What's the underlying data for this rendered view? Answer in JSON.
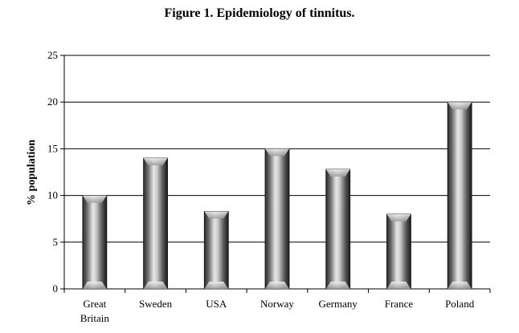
{
  "chart_data": {
    "type": "bar",
    "title": "Figure 1. Epidemiology of tinnitus.",
    "ylabel": "% population",
    "xlabel": "",
    "categories": [
      [
        "Great",
        "Britain"
      ],
      [
        "Sweden"
      ],
      [
        "USA"
      ],
      [
        "Norway"
      ],
      [
        "Germany"
      ],
      [
        "France"
      ],
      [
        "Poland"
      ]
    ],
    "values": [
      10,
      14,
      8.3,
      15,
      12.8,
      8,
      20
    ],
    "ylim": [
      0,
      25
    ],
    "yticks": [
      0,
      5,
      10,
      15,
      20,
      25
    ],
    "grid": true,
    "legend": "none",
    "bar_color": "#8a8a8a"
  }
}
